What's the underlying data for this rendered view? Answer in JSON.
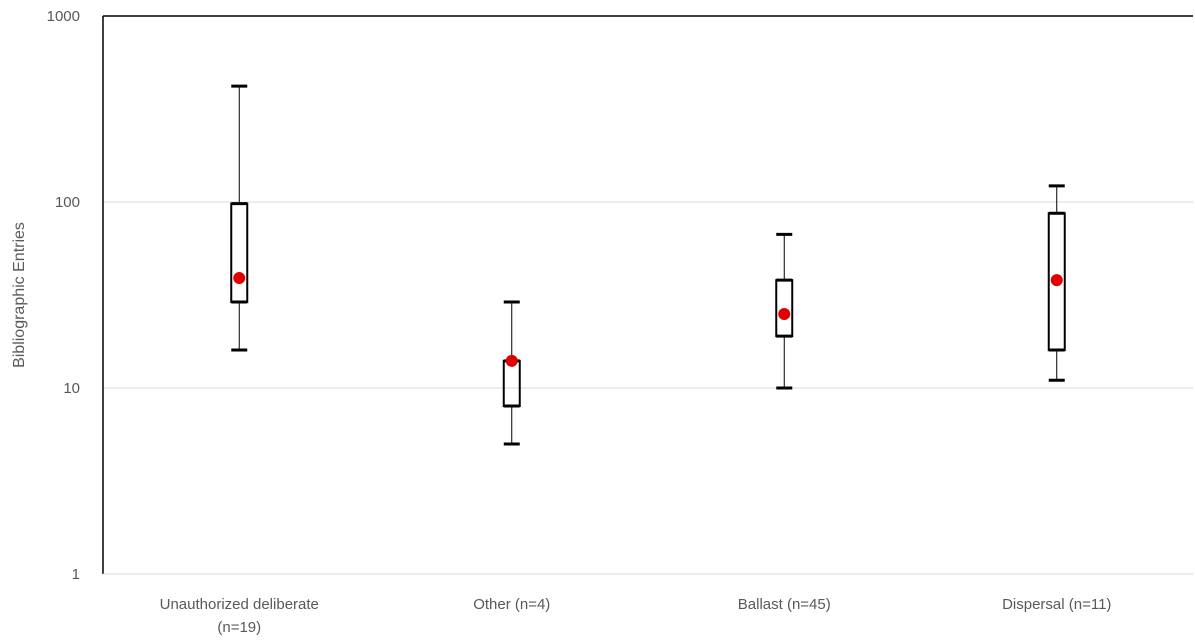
{
  "chart_data": {
    "type": "box",
    "title": "",
    "xlabel": "",
    "ylabel": "Bibliographic Entries",
    "yscale": "log",
    "ylim": [
      1,
      1000
    ],
    "yticks": [
      1,
      10,
      100,
      1000
    ],
    "ytick_labels": [
      "1",
      "10",
      "100",
      "1000"
    ],
    "grid": true,
    "legend": "none",
    "categories": [
      {
        "label_lines": [
          "Unauthorized deliberate",
          "(n=19)"
        ],
        "min": 16,
        "q1": 29,
        "median": 39,
        "q3": 98,
        "max": 420
      },
      {
        "label_lines": [
          "Other (n=4)"
        ],
        "min": 5,
        "q1": 8,
        "median": 14,
        "q3": 14,
        "max": 29
      },
      {
        "label_lines": [
          "Ballast (n=45)"
        ],
        "min": 10,
        "q1": 19,
        "median": 25,
        "q3": 38,
        "max": 67
      },
      {
        "label_lines": [
          "Dispersal (n=11)"
        ],
        "min": 11,
        "q1": 16,
        "median": 38,
        "q3": 87,
        "max": 122
      }
    ],
    "colors": {
      "median_marker": "#e00000",
      "box": "#000000",
      "grid": "#d9d9d9",
      "axis": "#000000",
      "text": "#595959"
    }
  }
}
